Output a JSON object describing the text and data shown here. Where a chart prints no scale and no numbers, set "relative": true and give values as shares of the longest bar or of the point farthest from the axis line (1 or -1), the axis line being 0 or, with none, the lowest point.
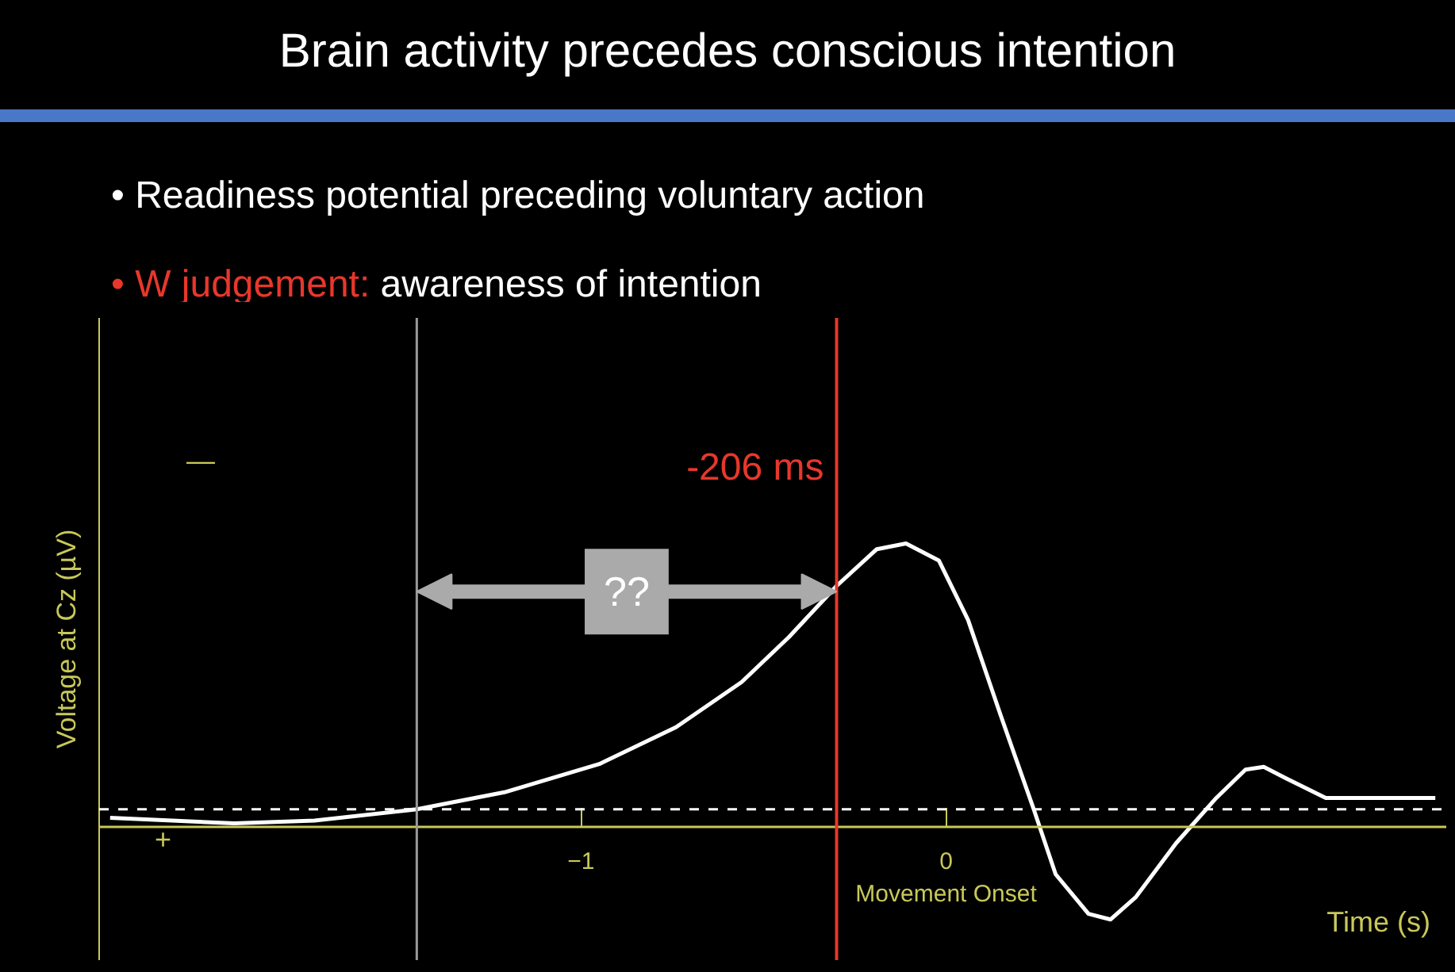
{
  "chart_data": {
    "type": "line",
    "title": "Brain activity precedes conscious intention",
    "xlabel": "Time (s)",
    "ylabel": "Voltage at Cz (µV)",
    "relative": true,
    "x": [
      -2.29,
      -1.95,
      -1.73,
      -1.45,
      -1.21,
      -0.95,
      -0.74,
      -0.56,
      -0.43,
      -0.3,
      -0.19,
      -0.11,
      -0.02,
      0.06,
      0.15,
      0.24,
      0.3,
      0.39,
      0.45,
      0.52,
      0.63,
      0.74,
      0.82,
      0.87,
      0.93,
      1.04,
      1.17,
      1.34
    ],
    "series": [
      {
        "color": "#ffffff",
        "values": [
          0.03,
          0.01,
          0.02,
          0.06,
          0.12,
          0.22,
          0.35,
          0.51,
          0.67,
          0.85,
          0.98,
          1.0,
          0.94,
          0.73,
          0.39,
          0.06,
          -0.17,
          -0.31,
          -0.33,
          -0.25,
          -0.06,
          0.1,
          0.2,
          0.21,
          0.17,
          0.1,
          0.1,
          0.1
        ]
      }
    ],
    "xlim": [
      -2.32,
      1.37
    ],
    "xticks": [
      -1,
      {
        "value": 0,
        "label": "0\nMovement Onset"
      }
    ],
    "ref_lines": [
      {
        "axis": "x",
        "value": -1.45,
        "label": null,
        "color": "#9a9a9a"
      },
      {
        "axis": "x",
        "value": -0.3,
        "label": "-206 ms",
        "color": "#e8372b"
      },
      {
        "axis": "y",
        "value": 0.06,
        "label": null,
        "color": "#ffffff",
        "line_style": "dashed"
      }
    ],
    "annotations": [
      "• Readiness potential preceding voluntary action",
      "• W judgement:",
      "awareness of intention",
      "??",
      "—",
      "+"
    ],
    "grid": false,
    "line_style": "solid",
    "marker": "none"
  }
}
